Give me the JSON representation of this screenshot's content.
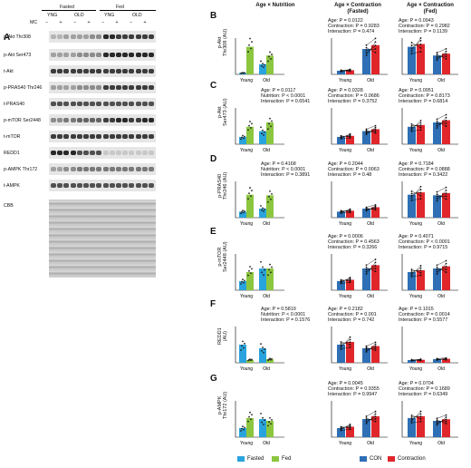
{
  "panelA": {
    "letter": "A",
    "groups": [
      "Fasted",
      "Fed"
    ],
    "ages": [
      "YNG",
      "OLD",
      "YNG",
      "OLD"
    ],
    "mc_label": "MC",
    "mc_signs": [
      "−",
      "+",
      "−",
      "+",
      "−",
      "+",
      "−",
      "+"
    ],
    "rows": [
      "p-Akt Thr308",
      "p-Akt Ser473",
      "t-Akt",
      "p-PRAS40 Thr246",
      "t-PRAS40",
      "p-mTOR Ser2448",
      "t-mTOR",
      "REDD1",
      "p-AMPK Thr172",
      "t-AMPK",
      "CBB"
    ]
  },
  "columns": {
    "c1": "Age × Nutrition",
    "c2a": "Age × Contraction",
    "c2b": "(Fasted)",
    "c3a": "Age × Contraction",
    "c3b": "(Fed)"
  },
  "xticks": [
    "Young",
    "Old"
  ],
  "rows": [
    {
      "letter": "B",
      "ylabel1": "p-Akt",
      "ylabel2": "Thr308 (AU)",
      "s1": [
        "",
        "",
        ""
      ],
      "s2": [
        "Age: P = 0.0122",
        "Contraction: P = 0.9283",
        "Interaction: P = 0.474"
      ],
      "s3": [
        "Age: P = 0.0943",
        "Contraction: P = 0.2982",
        "Interaction: P = 0.1139"
      ]
    },
    {
      "letter": "C",
      "ylabel1": "p-Akt",
      "ylabel2": "Ser473 (AU)",
      "s1": [
        "Age: P = 0.0117",
        "Nutrition: P < 0.0001",
        "Interaction: P = 0.6541"
      ],
      "s2": [
        "Age: P = 0.0328",
        "Contraction: P = 0.0686",
        "Interaction: P = 0.3752"
      ],
      "s3": [
        "Age: P = 0.0951",
        "Contraction: P = 0.8173",
        "Interaction: P = 0.6814"
      ]
    },
    {
      "letter": "D",
      "ylabel1": "p-PRAS40",
      "ylabel2": "Thr246 (AU)",
      "s1": [
        "Age: P = 0.4168",
        "Nutrition: P < 0.0001",
        "Interaction: P = 0.3891"
      ],
      "s2": [
        "Age: P = 0.2044",
        "Contraction: P = 0.0063",
        "Interaction: P = 0.48"
      ],
      "s3": [
        "Age: P = 0.7184",
        "Contraction: P = 0.0888",
        "Interaction: P = 0.3422"
      ]
    },
    {
      "letter": "E",
      "ylabel1": "p-mTOR",
      "ylabel2": "Ser2448 (AU)",
      "s1": [
        "",
        "",
        ""
      ],
      "s2": [
        "Age: P = 0.0006",
        "Contraction: P = 0.4563",
        "Interaction: P = 0.3266"
      ],
      "s3": [
        "Age: P = 0.4071",
        "Contraction: P < 0.0001",
        "Interaction: P = 0.9715"
      ]
    },
    {
      "letter": "F",
      "ylabel1": "REDD1",
      "ylabel2": "(AU)",
      "s1": [
        "Age: P = 0.5819",
        "Nutrition: P < 0.0001",
        "Interaction: P = 0.1576"
      ],
      "s2": [
        "Age: P = 0.2182",
        "Contraction: P = 0.001",
        "Interaction: P = 0.742"
      ],
      "s3": [
        "Age: P = 0.1015",
        "Contraction: P = 0.0014",
        "Interaction: P = 0.5577"
      ]
    },
    {
      "letter": "G",
      "ylabel1": "p-AMPK",
      "ylabel2": "Thr172 (AU)",
      "s1": [
        "",
        "",
        ""
      ],
      "s2": [
        "Age: P = 0.0045",
        "Contraction: P = 0.9355",
        "Interaction: P = 0.9947"
      ],
      "s3": [
        "Age: P = 0.0704",
        "Contraction: P = 0.1689",
        "Interaction: P = 0.6349"
      ]
    }
  ],
  "legend": {
    "fasted": "Fasted",
    "fed": "Fed",
    "con": "CON",
    "contraction": "Contraction"
  },
  "colors": {
    "fasted": "#29a3dd",
    "fed": "#8cc63f",
    "con": "#2e6fb5",
    "contraction": "#e0262b"
  },
  "chart_data": [
    {
      "panel": "B",
      "type": "bar",
      "categories": [
        "Young",
        "Old"
      ],
      "series": [
        {
          "name": "Fasted",
          "values": [
            1,
            7
          ]
        },
        {
          "name": "Fed",
          "values": [
            19,
            13
          ]
        }
      ]
    },
    {
      "panel": "C",
      "type": "bar",
      "categories": [
        "Young",
        "Old"
      ],
      "series": [
        {
          "name": "Fasted",
          "values": [
            1,
            1.8
          ]
        },
        {
          "name": "Fed",
          "values": [
            2.4,
            3
          ]
        }
      ]
    },
    {
      "panel": "D",
      "type": "bar",
      "categories": [
        "Young",
        "Old"
      ],
      "series": [
        {
          "name": "Fasted",
          "values": [
            1,
            1.5
          ]
        },
        {
          "name": "Fed",
          "values": [
            3.8,
            3.7
          ]
        }
      ]
    },
    {
      "panel": "E",
      "type": "bar",
      "categories": [
        "Young",
        "Old"
      ],
      "series": [
        {
          "name": "Fasted",
          "values": [
            1,
            2.4
          ]
        },
        {
          "name": "Fed",
          "values": [
            2,
            2.4
          ]
        }
      ]
    },
    {
      "panel": "F",
      "type": "bar",
      "categories": [
        "Young",
        "Old"
      ],
      "series": [
        {
          "name": "Fasted",
          "values": [
            1,
            0.8
          ]
        },
        {
          "name": "Fed",
          "values": [
            0.15,
            0.2
          ]
        }
      ]
    },
    {
      "panel": "G",
      "type": "bar",
      "categories": [
        "Young",
        "Old"
      ],
      "series": [
        {
          "name": "Fasted",
          "values": [
            1,
            2
          ]
        },
        {
          "name": "Fed",
          "values": [
            2.1,
            1.8
          ]
        }
      ]
    }
  ]
}
